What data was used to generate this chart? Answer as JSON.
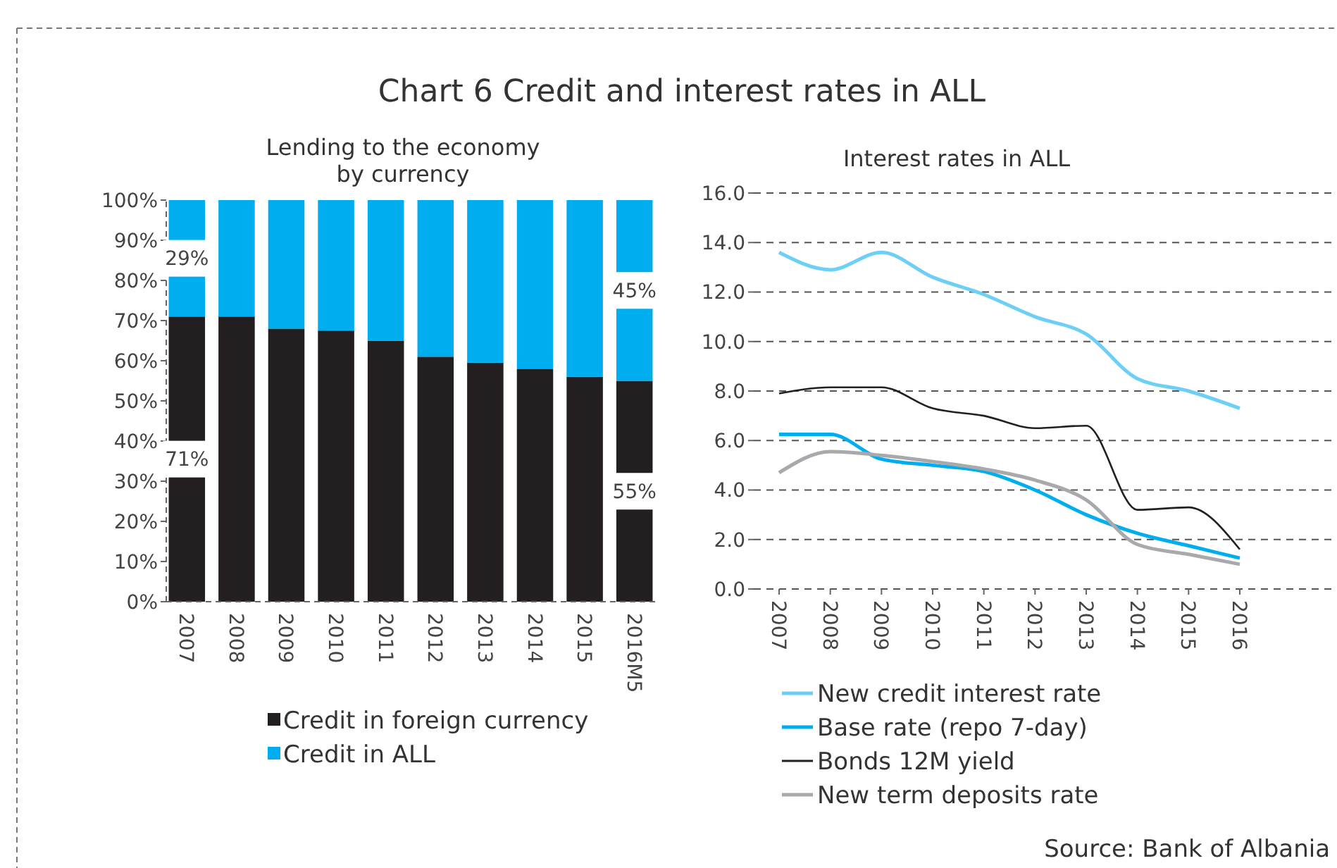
{
  "chart_data": [
    {
      "type": "bar",
      "title": "Chart 6 Credit and interest rates in ALL",
      "subtitle": "Lending to the economy by currency",
      "categories": [
        "2007",
        "2008",
        "2009",
        "2010",
        "2011",
        "2012",
        "2013",
        "2014",
        "2015",
        "2016M5"
      ],
      "stacked": true,
      "ylim": [
        0,
        100
      ],
      "yticks": [
        {
          "value": 0,
          "label": "0%"
        },
        {
          "value": 10,
          "label": "10%"
        },
        {
          "value": 20,
          "label": "20%"
        },
        {
          "value": 30,
          "label": "30%"
        },
        {
          "value": 40,
          "label": "40%"
        },
        {
          "value": 50,
          "label": "50%"
        },
        {
          "value": 60,
          "label": "60%"
        },
        {
          "value": 70,
          "label": "70%"
        },
        {
          "value": 80,
          "label": "80%"
        },
        {
          "value": 90,
          "label": "90%"
        },
        {
          "value": 100,
          "label": "100%"
        }
      ],
      "grid": false,
      "legend": "bottom",
      "series": [
        {
          "name": "Credit in foreign currency",
          "color": "#231f20",
          "values": [
            71,
            71,
            68,
            67.5,
            65,
            61,
            59.5,
            58,
            56,
            55
          ],
          "value_labels": [
            "71%",
            null,
            null,
            null,
            null,
            null,
            null,
            null,
            null,
            "55%"
          ]
        },
        {
          "name": "Credit in ALL",
          "color": "#00aeef",
          "values": [
            29,
            29,
            32,
            32.5,
            35,
            39,
            40.5,
            42,
            44,
            45
          ],
          "value_labels": [
            "29%",
            null,
            null,
            null,
            null,
            null,
            null,
            null,
            null,
            "45%"
          ]
        }
      ]
    },
    {
      "type": "line",
      "title": "Interest rates in ALL",
      "categories": [
        "2007",
        "2008",
        "2009",
        "2010",
        "2011",
        "2012",
        "2013",
        "2014",
        "2015",
        "2016"
      ],
      "ylim": [
        0,
        16
      ],
      "yticks": [
        {
          "value": 0,
          "label": "0.0"
        },
        {
          "value": 2,
          "label": "2.0"
        },
        {
          "value": 4,
          "label": "4.0"
        },
        {
          "value": 6,
          "label": "6.0"
        },
        {
          "value": 8,
          "label": "8.0"
        },
        {
          "value": 10,
          "label": "10.0"
        },
        {
          "value": 12,
          "label": "12.0"
        },
        {
          "value": 14,
          "label": "14.0"
        },
        {
          "value": 16,
          "label": "16.0"
        }
      ],
      "grid": "y",
      "legend": "bottom",
      "marker": "none",
      "line_style": "solid",
      "annotations": [
        "Source: Bank of Albania"
      ],
      "series": [
        {
          "name": "New credit interest rate",
          "color": "#6dcff6",
          "values": [
            13.6,
            12.9,
            13.6,
            12.6,
            11.9,
            11.0,
            10.3,
            8.5,
            8.0,
            7.3
          ]
        },
        {
          "name": "Base rate (repo 7-day)",
          "color": "#00aeef",
          "values": [
            6.25,
            6.25,
            5.25,
            5.0,
            4.75,
            4.0,
            3.0,
            2.25,
            1.75,
            1.25
          ]
        },
        {
          "name": "Bonds 12M yield",
          "color": "#231f20",
          "values": [
            7.9,
            8.15,
            8.15,
            7.3,
            7.0,
            6.5,
            6.6,
            3.2,
            3.3,
            1.6
          ]
        },
        {
          "name": "New term deposits rate",
          "color": "#a7a9ac",
          "values": [
            4.7,
            5.55,
            5.4,
            5.15,
            4.85,
            4.4,
            3.6,
            1.8,
            1.4,
            1.0
          ]
        }
      ]
    }
  ]
}
